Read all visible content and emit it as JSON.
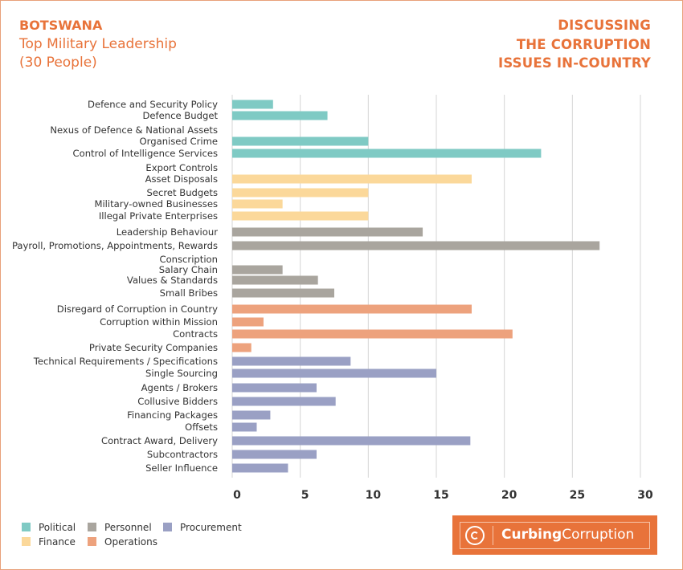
{
  "header": {
    "country": "BOTSWANA",
    "subtitle_line1": "Top Military Leadership",
    "subtitle_line2": "(30 People)",
    "right_line1": "DISCUSSING",
    "right_line2": "THE CORRUPTION",
    "right_line3": "ISSUES IN-COUNTRY"
  },
  "colors": {
    "Political": "#7fcac4",
    "Finance": "#fbd89a",
    "Personnel": "#a9a59e",
    "Operations": "#eda27d",
    "Procurement": "#9aa0c4",
    "grid": "#d6d6d6",
    "accent": "#e8733a"
  },
  "chart_data": {
    "type": "bar",
    "orientation": "horizontal",
    "xlim": [
      0,
      30
    ],
    "xticks": [
      0,
      5,
      10,
      15,
      20,
      25,
      30
    ],
    "grid": true,
    "legend_position": "bottom-left",
    "categories": [
      {
        "label": "Defence and Security Policy",
        "value": 3,
        "group": "Political"
      },
      {
        "label": "Defence Budget",
        "value": 7,
        "group": "Political"
      },
      {
        "label": "Nexus of Defence & National Assets",
        "value": 0,
        "group": "Political"
      },
      {
        "label": "Organised Crime",
        "value": 10,
        "group": "Political"
      },
      {
        "label": "Control of Intelligence Services",
        "value": 22.7,
        "group": "Political"
      },
      {
        "label": "Export Controls",
        "value": 0,
        "group": "Political"
      },
      {
        "label": "Asset Disposals",
        "value": 17.6,
        "group": "Finance"
      },
      {
        "label": "Secret Budgets",
        "value": 10,
        "group": "Finance"
      },
      {
        "label": "Military-owned Businesses",
        "value": 3.7,
        "group": "Finance"
      },
      {
        "label": "Illegal Private Enterprises",
        "value": 10,
        "group": "Finance"
      },
      {
        "label": "Leadership Behaviour",
        "value": 14,
        "group": "Personnel"
      },
      {
        "label": "Payroll, Promotions, Appointments, Rewards",
        "value": 27,
        "group": "Personnel"
      },
      {
        "label": "Conscription",
        "value": 0,
        "group": "Personnel"
      },
      {
        "label": "Salary Chain",
        "value": 3.7,
        "group": "Personnel"
      },
      {
        "label": "Values & Standards",
        "value": 6.3,
        "group": "Personnel"
      },
      {
        "label": "Small Bribes",
        "value": 7.5,
        "group": "Personnel"
      },
      {
        "label": "Disregard of Corruption in Country",
        "value": 17.6,
        "group": "Operations"
      },
      {
        "label": "Corruption within Mission",
        "value": 2.3,
        "group": "Operations"
      },
      {
        "label": "Contracts",
        "value": 20.6,
        "group": "Operations"
      },
      {
        "label": "Private Security Companies",
        "value": 1.4,
        "group": "Operations"
      },
      {
        "label": "Technical Requirements / Specifications",
        "value": 8.7,
        "group": "Procurement"
      },
      {
        "label": "Single Sourcing",
        "value": 15,
        "group": "Procurement"
      },
      {
        "label": "Agents / Brokers",
        "value": 6.2,
        "group": "Procurement"
      },
      {
        "label": "Collusive Bidders",
        "value": 7.6,
        "group": "Procurement"
      },
      {
        "label": "Financing Packages",
        "value": 2.8,
        "group": "Procurement"
      },
      {
        "label": "Offsets",
        "value": 1.8,
        "group": "Procurement"
      },
      {
        "label": "Contract Award, Delivery",
        "value": 17.5,
        "group": "Procurement"
      },
      {
        "label": "Subcontractors",
        "value": 6.2,
        "group": "Procurement"
      },
      {
        "label": "Seller Influence",
        "value": 4.1,
        "group": "Procurement"
      }
    ],
    "legend": [
      "Political",
      "Personnel",
      "Procurement",
      "Finance",
      "Operations"
    ]
  },
  "logo": {
    "text_bold": "Curbing",
    "text_regular": "Corruption"
  }
}
